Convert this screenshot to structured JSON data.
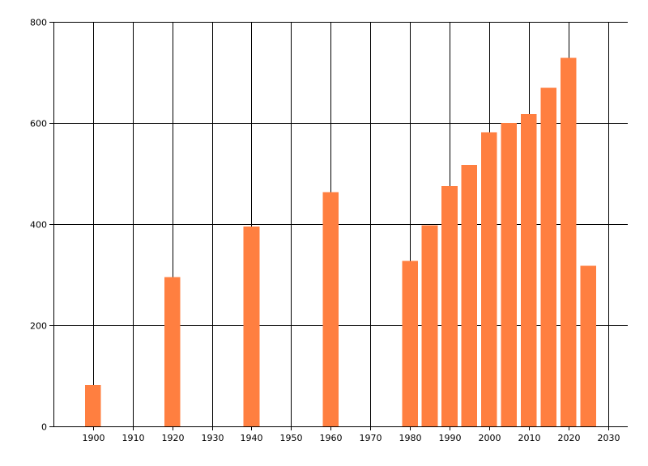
{
  "chart_data": {
    "type": "bar",
    "title": "",
    "xlabel": "",
    "ylabel": "",
    "x": [
      1900,
      1920,
      1940,
      1960,
      1980,
      1985,
      1990,
      1995,
      2000,
      2005,
      2010,
      2015,
      2020,
      2025
    ],
    "values": [
      82,
      295,
      395,
      463,
      327,
      398,
      475,
      517,
      582,
      600,
      618,
      670,
      729,
      318
    ],
    "xlim": [
      1890,
      2035
    ],
    "ylim": [
      0,
      800
    ],
    "x_ticks": [
      1900,
      1910,
      1920,
      1930,
      1940,
      1950,
      1960,
      1970,
      1980,
      1990,
      2000,
      2010,
      2020,
      2030
    ],
    "y_ticks": [
      0,
      200,
      400,
      600,
      800
    ],
    "bar_width_years": 4,
    "grid": true,
    "legend": "none",
    "colors": {
      "bar": "#FF7F40",
      "grid": "#000000",
      "background": "#ffffff"
    }
  }
}
